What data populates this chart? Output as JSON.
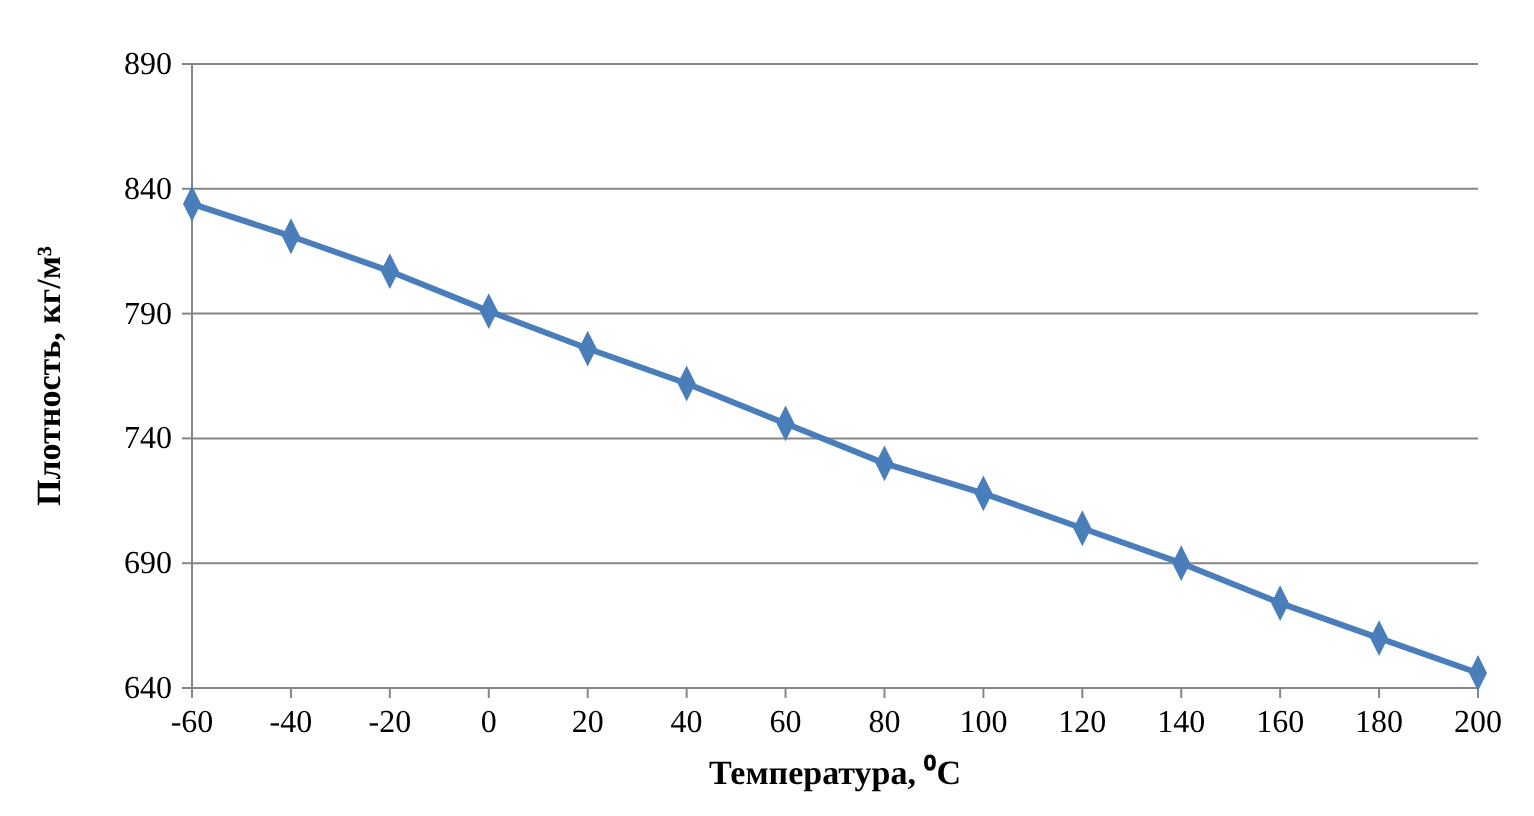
{
  "chart_data": {
    "type": "line",
    "xlabel": "Температура, ⁰C",
    "ylabel": "Плотность, кг/м³",
    "x": [
      -60,
      -40,
      -20,
      0,
      20,
      40,
      60,
      80,
      100,
      120,
      140,
      160,
      180,
      200
    ],
    "series": [
      {
        "color": "#4a7ebb",
        "values": [
          834,
          821,
          807,
          791,
          776,
          762,
          746,
          730,
          718,
          704,
          690,
          674,
          660,
          646
        ]
      }
    ],
    "xlim": [
      -60,
      200
    ],
    "xticks": [
      -60,
      -40,
      -20,
      0,
      20,
      40,
      60,
      80,
      100,
      120,
      140,
      160,
      180,
      200
    ],
    "ylim": [
      640,
      890
    ],
    "yticks": [
      640,
      690,
      740,
      790,
      840,
      890
    ],
    "grid": "y",
    "marker": "diamond",
    "line_style": "solid"
  }
}
